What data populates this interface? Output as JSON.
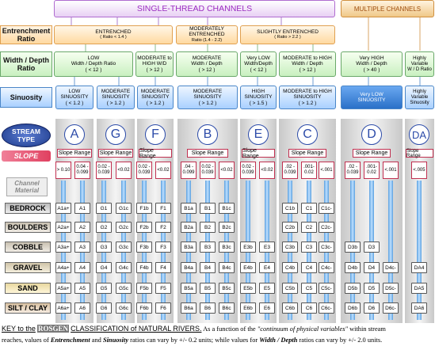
{
  "header": {
    "single_thread": "SINGLE-THREAD CHANNELS",
    "multiple": "MULTIPLE CHANNELS"
  },
  "row_labels": {
    "entrenchment": "Entrenchment Ratio",
    "width_depth": "Width / Depth Ratio",
    "sinuosity": "Sinuosity",
    "stream_type": "STREAM TYPE",
    "slope": "SLOPE",
    "channel_material": "Channel Material"
  },
  "entrenchment": [
    {
      "l1": "ENTRENCHED",
      "l2": "( Ratio < 1.4 )"
    },
    {
      "l1": "MODERATELY ENTRENCHED",
      "l2": "Ratio (1.4 - 2.2)"
    },
    {
      "l1": "SLIGHTLY ENTRENCHED",
      "l2": "( Ratio > 2.2 )"
    }
  ],
  "width_depth": [
    {
      "l1": "LOW",
      "l2": "Width / Depth Ratio",
      "l3": "( < 12 )"
    },
    {
      "l1": "MODERATE to",
      "l2": "HIGH W/D",
      "l3": "( > 12 )"
    },
    {
      "l1": "MODERATE",
      "l2": "Width / Depth",
      "l3": "( > 12 )"
    },
    {
      "l1": "Very LOW",
      "l2": "Width/Depth",
      "l3": "( < 12 )"
    },
    {
      "l1": "MODERATE to HIGH",
      "l2": "Width / Depth",
      "l3": "( > 12 )"
    },
    {
      "l1": "Very HIGH",
      "l2": "Width / Depth",
      "l3": "( > 40 )"
    },
    {
      "l1": "Highly",
      "l2": "Variable",
      "l3": "W / D Ratio"
    }
  ],
  "sinuosity": [
    {
      "l1": "LOW",
      "l2": "SINUOSITY",
      "l3": "( < 1.2 )"
    },
    {
      "l1": "MODERATE",
      "l2": "SINUOSITY",
      "l3": "( > 1.2 )"
    },
    {
      "l1": "MODERATE",
      "l2": "SINUOSITY",
      "l3": "( > 1.2 )"
    },
    {
      "l1": "MODERATE",
      "l2": "SINUOSITY",
      "l3": "( > 1.2 )"
    },
    {
      "l1": "HIGH",
      "l2": "SINUOSITY",
      "l3": "( > 1.5 )"
    },
    {
      "l1": "MODERATE to HIGH",
      "l2": "SINUOSITY",
      "l3": "( > 1.2 )"
    },
    {
      "l1": "Very LOW",
      "l2": "SINUOSITY",
      "l3": ""
    },
    {
      "l1": "Highly",
      "l2": "Variable",
      "l3": "Sinuosity"
    }
  ],
  "stream_types": [
    "A",
    "G",
    "F",
    "B",
    "E",
    "C",
    "D",
    "DA"
  ],
  "slope_range_label": "Slope Range",
  "slopes": {
    "A": [
      "> 0.10",
      "0.04 - 0.099"
    ],
    "G": [
      "0.02 - 0.039",
      "<0.02"
    ],
    "F": [
      "0.02 - 0.039",
      "<0.02"
    ],
    "B": [
      ".04 - 0.099",
      "0.02 - 0.039",
      "<0.02"
    ],
    "E": [
      "0.02 - 0.039",
      "<0.02"
    ],
    "C": [
      ".02 - 0.039",
      ".001- 0.02",
      "<.001"
    ],
    "D": [
      ".02 - 0.039",
      ".001- 0.02",
      "<.001"
    ],
    "DA": [
      "<.005"
    ]
  },
  "materials": [
    "BEDROCK",
    "BOULDERS",
    "COBBLE",
    "GRAVEL",
    "SAND",
    "SILT / CLAY"
  ],
  "cells": {
    "A1": [
      "A1a+",
      "A1"
    ],
    "A2": [
      "A2a+",
      "A2"
    ],
    "A3": [
      "A3a+",
      "A3"
    ],
    "A4": [
      "A4a+",
      "A4"
    ],
    "A5": [
      "A5a+",
      "A5"
    ],
    "A6": [
      "A6a+",
      "A6"
    ],
    "G1": [
      "G1",
      "G1c"
    ],
    "G2": [
      "G2",
      "G2c"
    ],
    "G3": [
      "G3",
      "G3c"
    ],
    "G4": [
      "G4",
      "G4c"
    ],
    "G5": [
      "G5",
      "G5c"
    ],
    "G6": [
      "G6",
      "G6c"
    ],
    "F1": [
      "F1b",
      "F1"
    ],
    "F2": [
      "F2b",
      "F2"
    ],
    "F3": [
      "F3b",
      "F3"
    ],
    "F4": [
      "F4b",
      "F4"
    ],
    "F5": [
      "F5b",
      "F5"
    ],
    "F6": [
      "F6b",
      "F6"
    ],
    "B1": [
      "B1a",
      "B1",
      "B1c"
    ],
    "B2": [
      "B2a",
      "B2",
      "B2c"
    ],
    "B3": [
      "B3a",
      "B3",
      "B3c"
    ],
    "B4": [
      "B4a",
      "B4",
      "B4c"
    ],
    "B5": [
      "B5a",
      "B5",
      "B5c"
    ],
    "B6": [
      "B6a",
      "B6",
      "B6c"
    ],
    "E3": [
      "E3b",
      "E3"
    ],
    "E4": [
      "E4b",
      "E4"
    ],
    "E5": [
      "E5b",
      "E5"
    ],
    "E6": [
      "E6b",
      "E6"
    ],
    "C1": [
      "C1b",
      "C1",
      "C1c-"
    ],
    "C2": [
      "C2b",
      "C2",
      "C2c-"
    ],
    "C3": [
      "C3b",
      "C3",
      "C3c-"
    ],
    "C4": [
      "C4b",
      "C4",
      "C4c-"
    ],
    "C5": [
      "C5b",
      "C5",
      "C5c-"
    ],
    "C6": [
      "C6b",
      "C6",
      "C6c-"
    ],
    "D3": [
      "D3b",
      "D3"
    ],
    "D4": [
      "D4b",
      "D4",
      "D4c-"
    ],
    "D5": [
      "D5b",
      "D5",
      "D5c-"
    ],
    "D6": [
      "D6b",
      "D6",
      "D6c-"
    ],
    "DA4": [
      "DA4"
    ],
    "DA5": [
      "DA5"
    ],
    "DA6": [
      "DA6"
    ]
  },
  "footer": {
    "key": "KEY to the",
    "rosgen": "ROSGEN",
    "classification": "CLASSIFICATION of NATURAL RIVERS.",
    "t1": "As a function of the",
    "continuum": "\"continuum of physical variables\"",
    "t2": "within stream",
    "t3": "reaches, values of",
    "entr": "Entrenchment",
    "and": "and",
    "sinu": "Sinuosity",
    "t4": "ratios can vary by +/- 0.2 units; while values for",
    "wd": "Width / Depth",
    "t5": "ratios can vary by +/- 2.0 units."
  },
  "colors": {
    "entrenchment": "#ffd9a0",
    "width_depth": "#c9f0c0",
    "sinuosity": "#a9d0ff",
    "header": "#b06cd0",
    "multiple": "#e8b060",
    "slope": "#e04060"
  }
}
